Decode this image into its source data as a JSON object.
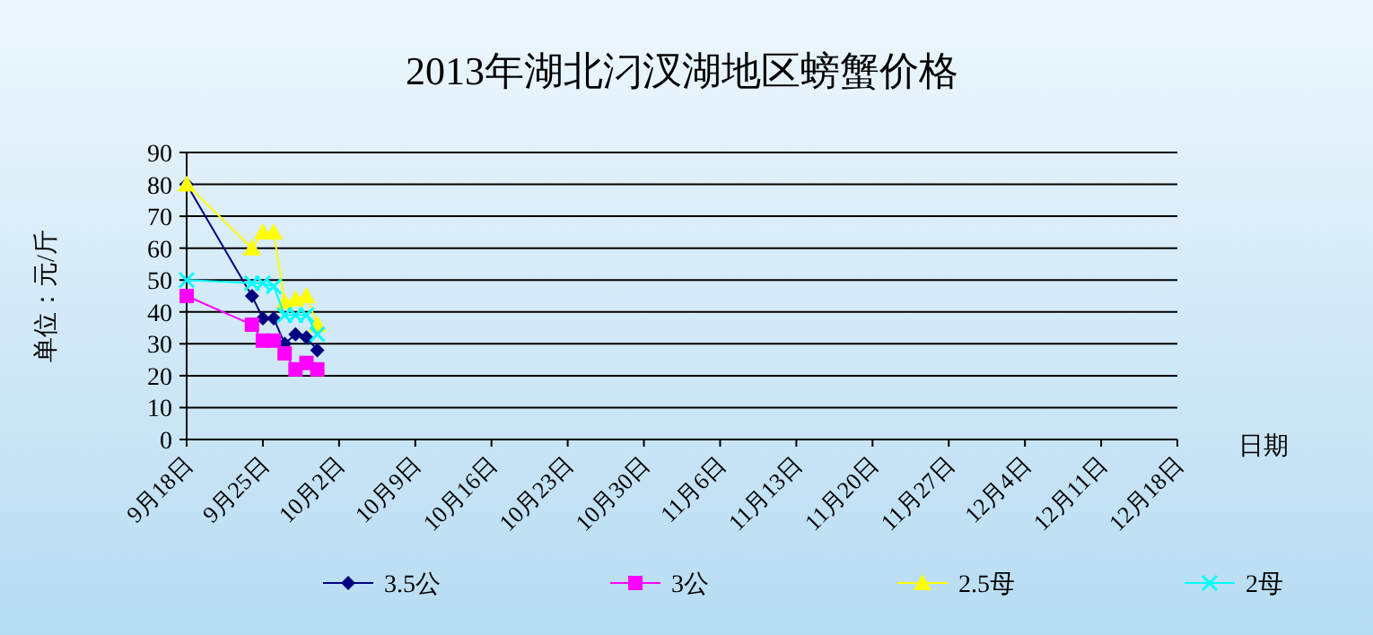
{
  "chart_data": {
    "type": "line",
    "title": "2013年湖北汈汊湖地区螃蟹价格",
    "ylabel": "单位：元/斤",
    "xlabel": "日期",
    "x": [
      "2013-09-18",
      "2013-09-24",
      "2013-09-25",
      "2013-09-26",
      "2013-09-27",
      "2013-09-28",
      "2013-09-29",
      "2013-09-30"
    ],
    "series": [
      {
        "name": "3.5公",
        "color": "#000080",
        "marker": "diamond",
        "values": [
          80,
          45,
          38,
          38,
          30,
          33,
          32,
          28
        ]
      },
      {
        "name": "3公",
        "color": "#ff00ff",
        "marker": "square",
        "values": [
          45,
          36,
          31,
          31,
          27,
          22,
          24,
          22
        ]
      },
      {
        "name": "2.5母",
        "color": "#ffff00",
        "marker": "triangle",
        "values": [
          80,
          60,
          65,
          65,
          43,
          44,
          45,
          36
        ]
      },
      {
        "name": "2母",
        "color": "#00ffff",
        "marker": "cross",
        "values": [
          50,
          49,
          49,
          48,
          39,
          39,
          39,
          33
        ]
      }
    ],
    "xlim": [
      "2013-09-18",
      "2013-12-18"
    ],
    "xticks": [
      {
        "value": "2013-09-18",
        "label": "9月18日"
      },
      {
        "value": "2013-09-25",
        "label": "9月25日"
      },
      {
        "value": "2013-10-02",
        "label": "10月2日"
      },
      {
        "value": "2013-10-09",
        "label": "10月9日"
      },
      {
        "value": "2013-10-16",
        "label": "10月16日"
      },
      {
        "value": "2013-10-23",
        "label": "10月23日"
      },
      {
        "value": "2013-10-30",
        "label": "10月30日"
      },
      {
        "value": "2013-11-06",
        "label": "11月6日"
      },
      {
        "value": "2013-11-13",
        "label": "11月13日"
      },
      {
        "value": "2013-11-20",
        "label": "11月20日"
      },
      {
        "value": "2013-11-27",
        "label": "11月27日"
      },
      {
        "value": "2013-12-04",
        "label": "12月4日"
      },
      {
        "value": "2013-12-11",
        "label": "12月11日"
      },
      {
        "value": "2013-12-18",
        "label": "12月18日"
      }
    ],
    "ylim": [
      0,
      90
    ],
    "yticks": [
      0,
      10,
      20,
      30,
      40,
      50,
      60,
      70,
      80,
      90
    ],
    "grid": "y",
    "legend": "bottom"
  }
}
